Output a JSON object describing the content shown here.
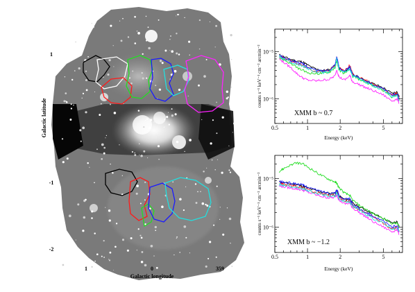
{
  "map": {
    "xlabel": "Galactic longitude",
    "ylabel": "Galactic latitude",
    "x_ticks": [
      "1",
      "0",
      "359"
    ],
    "y_ticks": [
      "1",
      "-1",
      "-2"
    ],
    "region_colors": {
      "black": "#000000",
      "white": "#ffffff",
      "red": "#ff1a1a",
      "green": "#22dd22",
      "blue": "#1a1aff",
      "magenta": "#ff22ff",
      "cyan": "#22e0e0"
    }
  },
  "chart_data": [
    {
      "type": "line",
      "annotation": "XMM  b ~ 0.7",
      "xlabel": "Energy (keV)",
      "ylabel": "counts s⁻¹ keV⁻¹ cm⁻² arcmin⁻²",
      "xscale": "log",
      "yscale": "log",
      "xlim": [
        0.5,
        7.5
      ],
      "ylim": [
        3e-07,
        3e-05
      ],
      "x_tick_labels": [
        "0.5",
        "1",
        "2",
        "5"
      ],
      "y_tick_labels": [
        "10⁻⁵",
        "10⁻⁶"
      ],
      "x": [
        0.55,
        0.6,
        0.7,
        0.8,
        0.9,
        1.0,
        1.2,
        1.4,
        1.6,
        1.8,
        1.86,
        1.95,
        2.2,
        2.45,
        2.6,
        3.0,
        3.5,
        4.0,
        5.0,
        6.0,
        6.7,
        7.0
      ],
      "series": [
        {
          "color": "#000000",
          "values": [
            8.5e-06,
            7.8e-06,
            6.8e-06,
            6.3e-06,
            6.1e-06,
            5.2e-06,
            4.2e-06,
            4e-06,
            4.1e-06,
            5.2e-06,
            7.5e-06,
            4.5e-06,
            3.7e-06,
            4.8e-06,
            3.3e-06,
            2.8e-06,
            2.4e-06,
            2.1e-06,
            1.7e-06,
            1.3e-06,
            1.4e-06,
            1.1e-06
          ]
        },
        {
          "color": "#ff1a1a",
          "values": [
            8e-06,
            7.4e-06,
            6.3e-06,
            5.7e-06,
            5.2e-06,
            4.5e-06,
            3.8e-06,
            3.8e-06,
            4e-06,
            5.2e-06,
            7.2e-06,
            4.5e-06,
            3.9e-06,
            5.2e-06,
            3.4e-06,
            2.8e-06,
            2.4e-06,
            2e-06,
            1.6e-06,
            1.2e-06,
            1.3e-06,
            1e-06
          ]
        },
        {
          "color": "#22dd22",
          "values": [
            7.5e-06,
            6.8e-06,
            5.6e-06,
            4.6e-06,
            4e-06,
            3.6e-06,
            3.4e-06,
            3.5e-06,
            3.7e-06,
            4.6e-06,
            6.4e-06,
            4.1e-06,
            3.4e-06,
            4.3e-06,
            3e-06,
            2.6e-06,
            2.2e-06,
            1.9e-06,
            1.5e-06,
            1.1e-06,
            1.2e-06,
            9e-07
          ]
        },
        {
          "color": "#1a1aff",
          "values": [
            8.2e-06,
            7.5e-06,
            6.5e-06,
            6e-06,
            5.5e-06,
            4.8e-06,
            4e-06,
            3.9e-06,
            4.1e-06,
            5.4e-06,
            7.8e-06,
            4.7e-06,
            3.8e-06,
            4.7e-06,
            3.3e-06,
            2.8e-06,
            2.4e-06,
            2e-06,
            1.6e-06,
            1.2e-06,
            1.3e-06,
            1e-06
          ]
        },
        {
          "color": "#ff22ff",
          "values": [
            7e-06,
            6e-06,
            4.6e-06,
            3.4e-06,
            2.8e-06,
            2.5e-06,
            2.4e-06,
            2.5e-06,
            2.6e-06,
            3.1e-06,
            4.2e-06,
            2.9e-06,
            2.5e-06,
            3.1e-06,
            2.3e-06,
            2e-06,
            1.7e-06,
            1.5e-06,
            1.2e-06,
            9e-07,
            1e-06,
            8e-07
          ]
        },
        {
          "color": "#22e0e0",
          "values": [
            7.8e-06,
            7.1e-06,
            6e-06,
            5.4e-06,
            5e-06,
            4.4e-06,
            3.7e-06,
            3.6e-06,
            3.8e-06,
            4.9e-06,
            7e-06,
            4.3e-06,
            3.6e-06,
            4.4e-06,
            3.1e-06,
            2.6e-06,
            2.2e-06,
            1.9e-06,
            1.5e-06,
            1.1e-06,
            1.2e-06,
            9e-07
          ]
        }
      ]
    },
    {
      "type": "line",
      "annotation": "XMM  b ~ −1.2",
      "xlabel": "Energy (keV)",
      "ylabel": "counts s⁻¹ keV⁻¹ cm⁻² arcmin⁻²",
      "xscale": "log",
      "yscale": "log",
      "xlim": [
        0.5,
        7.5
      ],
      "ylim": [
        3e-07,
        3e-05
      ],
      "x_tick_labels": [
        "0.5",
        "1",
        "2",
        "5"
      ],
      "y_tick_labels": [
        "10⁻⁵",
        "10⁻⁶"
      ],
      "x": [
        0.55,
        0.6,
        0.7,
        0.8,
        0.9,
        1.0,
        1.2,
        1.4,
        1.6,
        1.8,
        1.86,
        1.95,
        2.2,
        2.45,
        2.6,
        3.0,
        3.5,
        4.0,
        5.0,
        6.0,
        6.7,
        7.0
      ],
      "series": [
        {
          "color": "#000000",
          "values": [
            8.5e-06,
            8.2e-06,
            7.8e-06,
            7.5e-06,
            7e-06,
            6.4e-06,
            5.6e-06,
            5.2e-06,
            4.9e-06,
            5e-06,
            5.8e-06,
            4.4e-06,
            3.7e-06,
            3.8e-06,
            3.1e-06,
            2.6e-06,
            2.2e-06,
            1.9e-06,
            1.5e-06,
            1.2e-06,
            1.3e-06,
            1e-06
          ]
        },
        {
          "color": "#ff1a1a",
          "values": [
            8e-06,
            7.7e-06,
            7.2e-06,
            6.9e-06,
            6.5e-06,
            6e-06,
            5.2e-06,
            4.8e-06,
            4.5e-06,
            4.6e-06,
            5.3e-06,
            4e-06,
            3.4e-06,
            3.5e-06,
            2.8e-06,
            2.3e-06,
            1.9e-06,
            1.6e-06,
            1.2e-06,
            9e-07,
            1e-06,
            8e-07
          ]
        },
        {
          "color": "#22dd22",
          "values": [
            1.4e-05,
            1.6e-05,
            1.9e-05,
            2.1e-05,
            2e-05,
            1.75e-05,
            1.35e-05,
            1.1e-05,
            9.5e-06,
            8.5e-06,
            8e-06,
            6.5e-06,
            5e-06,
            4.5e-06,
            3.6e-06,
            2.8e-06,
            2.3e-06,
            1.9e-06,
            1.5e-06,
            1.2e-06,
            1.2e-06,
            1e-06
          ]
        },
        {
          "color": "#1a1aff",
          "values": [
            8.6e-06,
            8.4e-06,
            8e-06,
            7.8e-06,
            7.3e-06,
            6.7e-06,
            5.8e-06,
            5.3e-06,
            5e-06,
            5.1e-06,
            5.9e-06,
            4.5e-06,
            3.7e-06,
            3.8e-06,
            3e-06,
            2.4e-06,
            2e-06,
            1.7e-06,
            1.3e-06,
            1e-06,
            1.1e-06,
            8e-07
          ]
        },
        {
          "color": "#ff22ff",
          "values": [
            7e-06,
            6.8e-06,
            6.4e-06,
            6.1e-06,
            5.8e-06,
            5.3e-06,
            4.6e-06,
            4.2e-06,
            4e-06,
            4.1e-06,
            4.7e-06,
            3.6e-06,
            3e-06,
            3.1e-06,
            2.5e-06,
            2e-06,
            1.6e-06,
            1.3e-06,
            1e-06,
            8e-07,
            9e-07,
            7e-07
          ]
        },
        {
          "color": "#22e0e0",
          "values": [
            7.5e-06,
            7.3e-06,
            6.9e-06,
            6.6e-06,
            6.2e-06,
            5.7e-06,
            5e-06,
            4.6e-06,
            4.3e-06,
            4.4e-06,
            5.1e-06,
            3.9e-06,
            3.3e-06,
            3.4e-06,
            2.7e-06,
            2.2e-06,
            1.8e-06,
            1.5e-06,
            1.2e-06,
            9e-07,
            1e-06,
            8e-07
          ]
        }
      ]
    }
  ]
}
